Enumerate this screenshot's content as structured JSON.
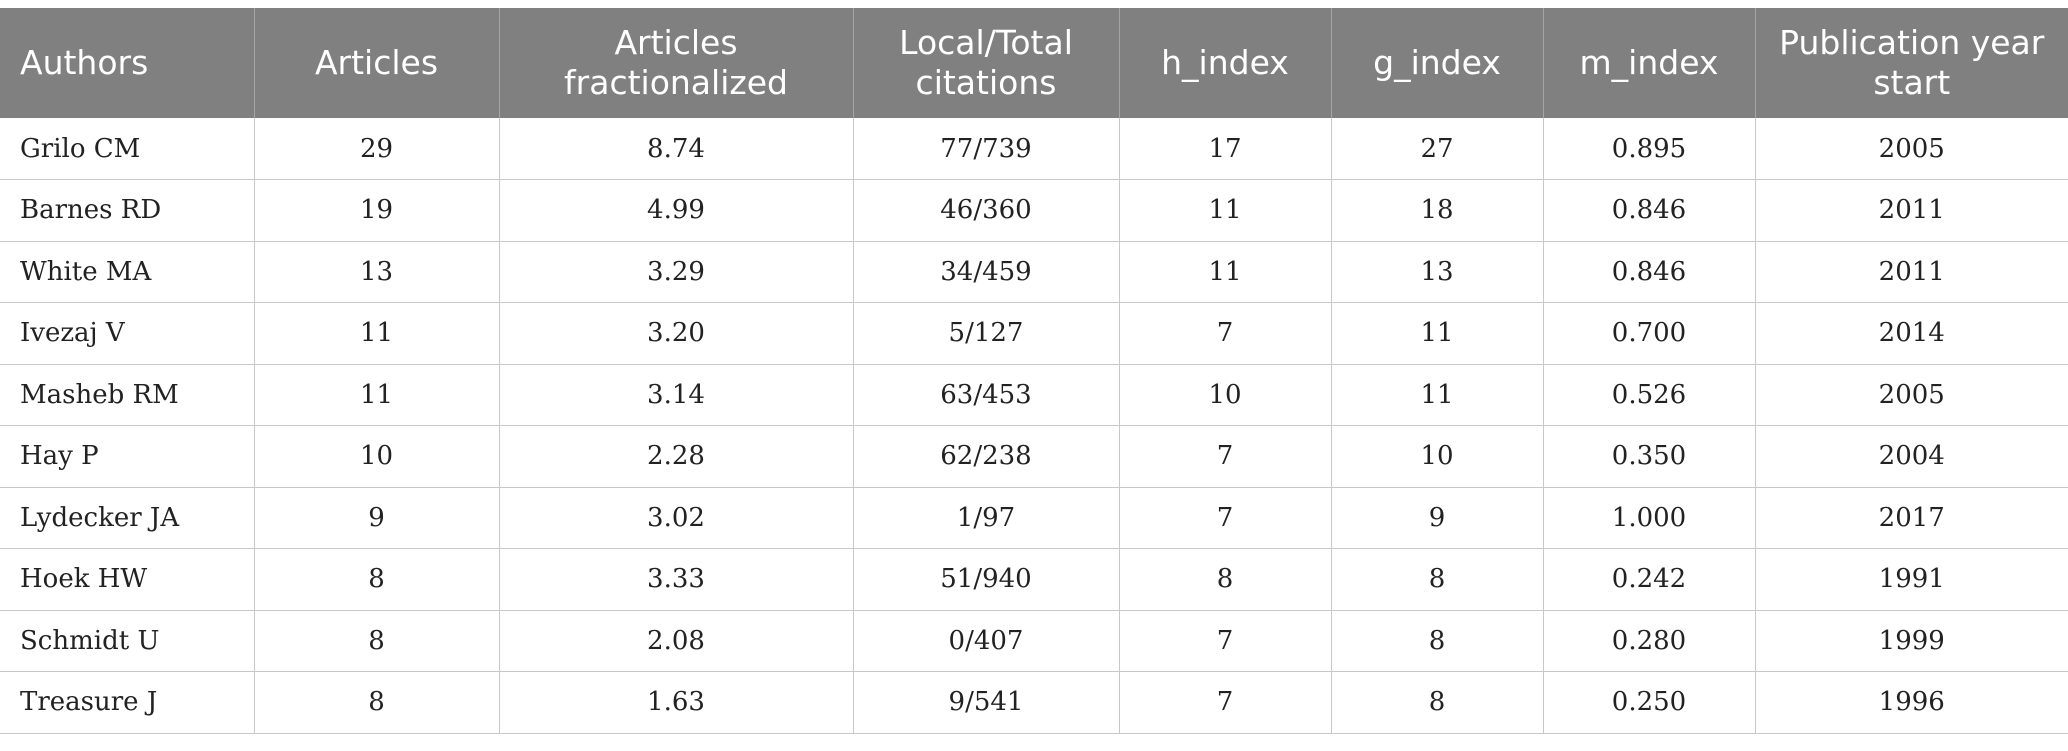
{
  "table": {
    "headers": [
      "Authors",
      "Articles",
      "Articles fractionalized",
      "Local/Total citations",
      "h_index",
      "g_index",
      "m_index",
      "Publication year start"
    ],
    "rows": [
      [
        "Grilo CM",
        "29",
        "8.74",
        "77/739",
        "17",
        "27",
        "0.895",
        "2005"
      ],
      [
        "Barnes RD",
        "19",
        "4.99",
        "46/360",
        "11",
        "18",
        "0.846",
        "2011"
      ],
      [
        "White MA",
        "13",
        "3.29",
        "34/459",
        "11",
        "13",
        "0.846",
        "2011"
      ],
      [
        "Ivezaj V",
        "11",
        "3.20",
        "5/127",
        "7",
        "11",
        "0.700",
        "2014"
      ],
      [
        "Masheb RM",
        "11",
        "3.14",
        "63/453",
        "10",
        "11",
        "0.526",
        "2005"
      ],
      [
        "Hay P",
        "10",
        "2.28",
        "62/238",
        "7",
        "10",
        "0.350",
        "2004"
      ],
      [
        "Lydecker JA",
        "9",
        "3.02",
        "1/97",
        "7",
        "9",
        "1.000",
        "2017"
      ],
      [
        "Hoek HW",
        "8",
        "3.33",
        "51/940",
        "8",
        "8",
        "0.242",
        "1991"
      ],
      [
        "Schmidt U",
        "8",
        "2.08",
        "0/407",
        "7",
        "8",
        "0.280",
        "1999"
      ],
      [
        "Treasure J",
        "8",
        "1.63",
        "9/541",
        "7",
        "8",
        "0.250",
        "1996"
      ]
    ]
  },
  "colors": {
    "header_bg": "#808080",
    "header_text": "#ffffff",
    "grid": "#c8c8c8"
  }
}
